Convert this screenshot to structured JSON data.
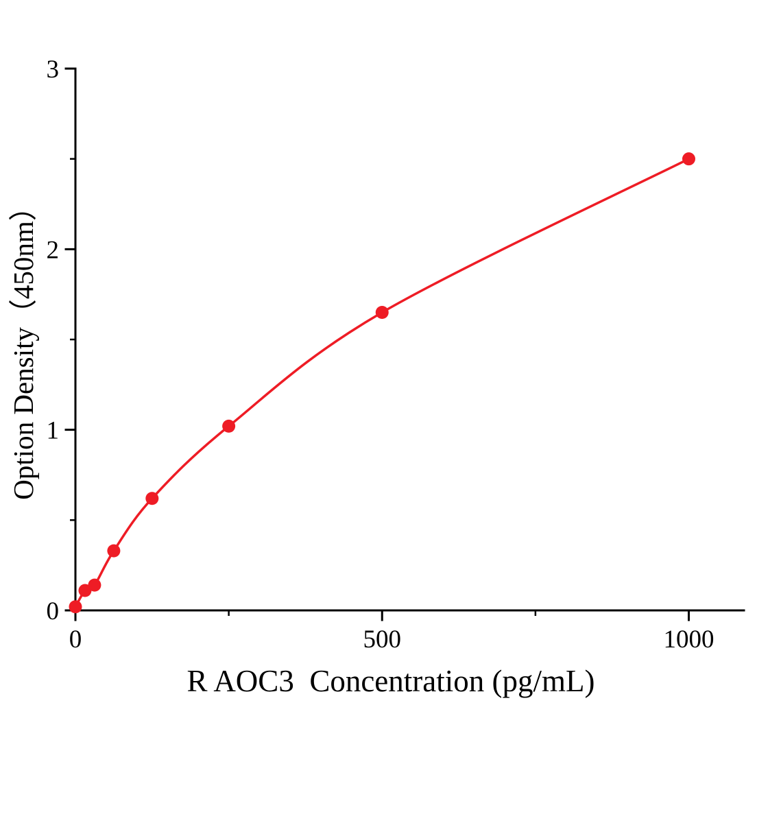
{
  "chart_data": {
    "type": "line",
    "title": "",
    "xlabel": "R AOC3  Concentration (pg/mL)",
    "ylabel": "Option Density（450nm）",
    "x": [
      0,
      15.6,
      31.2,
      62.5,
      125,
      250,
      500,
      1000
    ],
    "y": [
      0.02,
      0.11,
      0.14,
      0.33,
      0.62,
      1.02,
      1.65,
      2.5
    ],
    "xlim": [
      0,
      1090
    ],
    "ylim": [
      0,
      3
    ],
    "xticks": [
      0,
      500,
      1000
    ],
    "yticks": [
      0,
      1,
      2,
      3
    ],
    "xminorticks": [
      250,
      750
    ],
    "yminorticks": [
      0.5,
      1.5,
      2.5
    ],
    "grid": false,
    "legend": null,
    "line_color": "#ee1c25",
    "marker_color": "#ee1c25",
    "axis_color": "#000000",
    "marker": "circle",
    "marker_size": 9.5
  }
}
